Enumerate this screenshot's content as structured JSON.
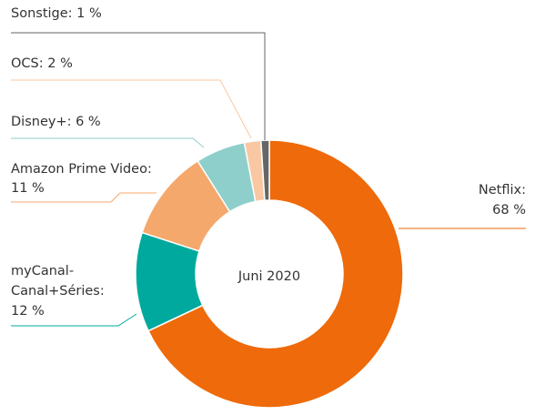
{
  "chart_data": {
    "type": "donut",
    "center_label": "Juni 2020",
    "values": [
      68,
      12,
      11,
      6,
      2,
      1
    ],
    "labels": [
      [
        "Netflix:",
        "68 %"
      ],
      [
        "myCanal-",
        "Canal+Séries:",
        "12 %"
      ],
      [
        "Amazon Prime Video:",
        "11 %"
      ],
      [
        "Disney+: 6 %"
      ],
      [
        "OCS: 2 %"
      ],
      [
        "Sonstige: 1 %"
      ]
    ],
    "colors": [
      "#ee6a0a",
      "#00a99d",
      "#f5a86c",
      "#8ecfcc",
      "#f9c7a2",
      "#666666"
    ]
  }
}
